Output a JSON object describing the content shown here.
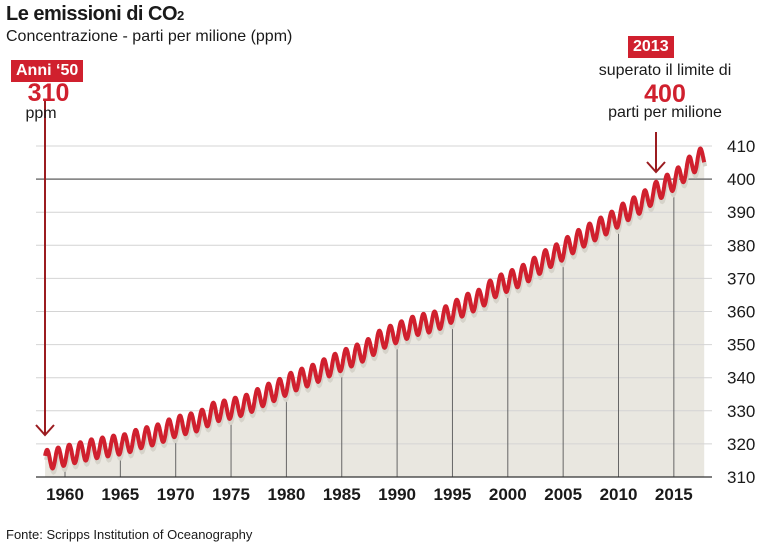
{
  "header": {
    "title": "Le emissioni di CO",
    "title_sub": "2",
    "subtitle": "Concentrazione - parti per milione (ppm)"
  },
  "annotations": {
    "left": {
      "tag": "Anni ‘50",
      "value": "310",
      "unit": "ppm"
    },
    "right": {
      "tag": "2013",
      "line1": "superato il limite di",
      "value": "400",
      "line2": "parti per milione"
    }
  },
  "source": "Fonte: Scripps Institution of Oceanography",
  "colors": {
    "line": "#d0202e",
    "fill": "#e9e7e0",
    "arrow": "#9b1c20",
    "reference": "#777777"
  },
  "chart_data": {
    "type": "line",
    "title": "Le emissioni di CO2",
    "subtitle": "Concentrazione - parti per milione (ppm)",
    "ylim": [
      310,
      410
    ],
    "yticks": [
      410,
      400,
      390,
      380,
      370,
      360,
      350,
      340,
      330,
      320,
      310
    ],
    "xticks": [
      1960,
      1965,
      1970,
      1975,
      1980,
      1985,
      1990,
      1995,
      2000,
      2005,
      2010,
      2015
    ],
    "reference_line": 400,
    "grid": true,
    "seasonal_amplitude_ppm": 3,
    "years": [
      1958,
      1959,
      1960,
      1961,
      1962,
      1963,
      1964,
      1965,
      1966,
      1967,
      1968,
      1969,
      1970,
      1971,
      1972,
      1973,
      1974,
      1975,
      1976,
      1977,
      1978,
      1979,
      1980,
      1981,
      1982,
      1983,
      1984,
      1985,
      1986,
      1987,
      1988,
      1989,
      1990,
      1991,
      1992,
      1993,
      1994,
      1995,
      1996,
      1997,
      1998,
      1999,
      2000,
      2001,
      2002,
      2003,
      2004,
      2005,
      2006,
      2007,
      2008,
      2009,
      2010,
      2011,
      2012,
      2013,
      2014,
      2015,
      2016,
      2017
    ],
    "annual_mean_ppm": [
      315.3,
      316.0,
      316.9,
      317.6,
      318.5,
      319.0,
      319.6,
      320.0,
      321.4,
      322.2,
      323.0,
      324.6,
      325.7,
      326.3,
      327.5,
      329.7,
      330.2,
      331.1,
      332.0,
      333.8,
      335.4,
      336.8,
      338.7,
      339.9,
      341.1,
      342.8,
      344.4,
      345.9,
      347.2,
      348.9,
      351.5,
      352.9,
      354.2,
      355.6,
      356.4,
      357.1,
      358.8,
      360.8,
      362.6,
      363.7,
      366.7,
      368.4,
      369.7,
      371.3,
      373.5,
      375.8,
      377.5,
      379.8,
      381.9,
      383.8,
      385.6,
      387.4,
      389.9,
      391.7,
      393.9,
      396.5,
      398.6,
      400.8,
      404.2,
      406.5
    ]
  }
}
